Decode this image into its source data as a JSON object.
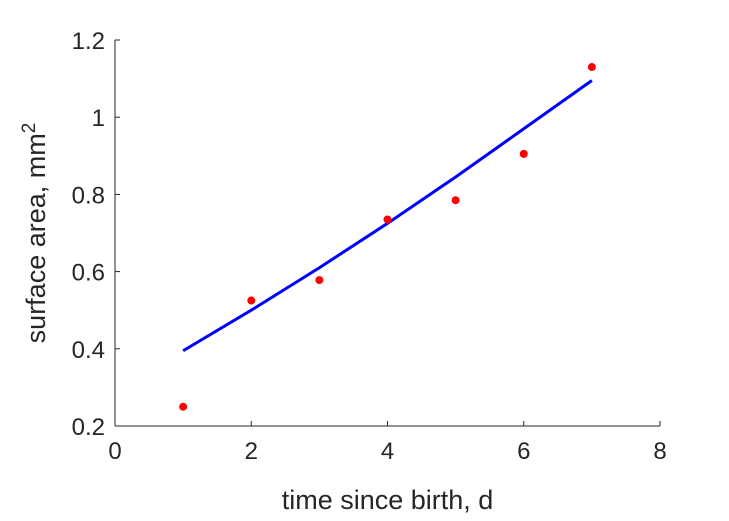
{
  "chart_data": {
    "type": "scatter",
    "xlabel": "time since birth, d",
    "ylabel_text": "surface area, mm",
    "ylabel_superscript": "2",
    "xlim": [
      0,
      8
    ],
    "ylim": [
      0.2,
      1.2
    ],
    "xticks": [
      0,
      2,
      4,
      6,
      8
    ],
    "xtick_labels": [
      "0",
      "2",
      "4",
      "6",
      "8"
    ],
    "yticks": [
      0.2,
      0.4,
      0.6,
      0.8,
      1.0,
      1.2
    ],
    "ytick_labels": [
      "0.2",
      "0.4",
      "0.6",
      "0.8",
      "1",
      "1.2"
    ],
    "grid": false,
    "series": [
      {
        "kind": "markers",
        "color": "#ff0000",
        "x": [
          1,
          2,
          3,
          4,
          5,
          6,
          7
        ],
        "y": [
          0.25,
          0.525,
          0.578,
          0.735,
          0.785,
          0.905,
          1.13
        ]
      },
      {
        "kind": "line",
        "color": "#0000ff",
        "x": [
          1,
          2,
          3,
          4,
          5,
          6,
          7
        ],
        "y": [
          0.395,
          0.5,
          0.61,
          0.725,
          0.845,
          0.97,
          1.095
        ]
      }
    ]
  }
}
